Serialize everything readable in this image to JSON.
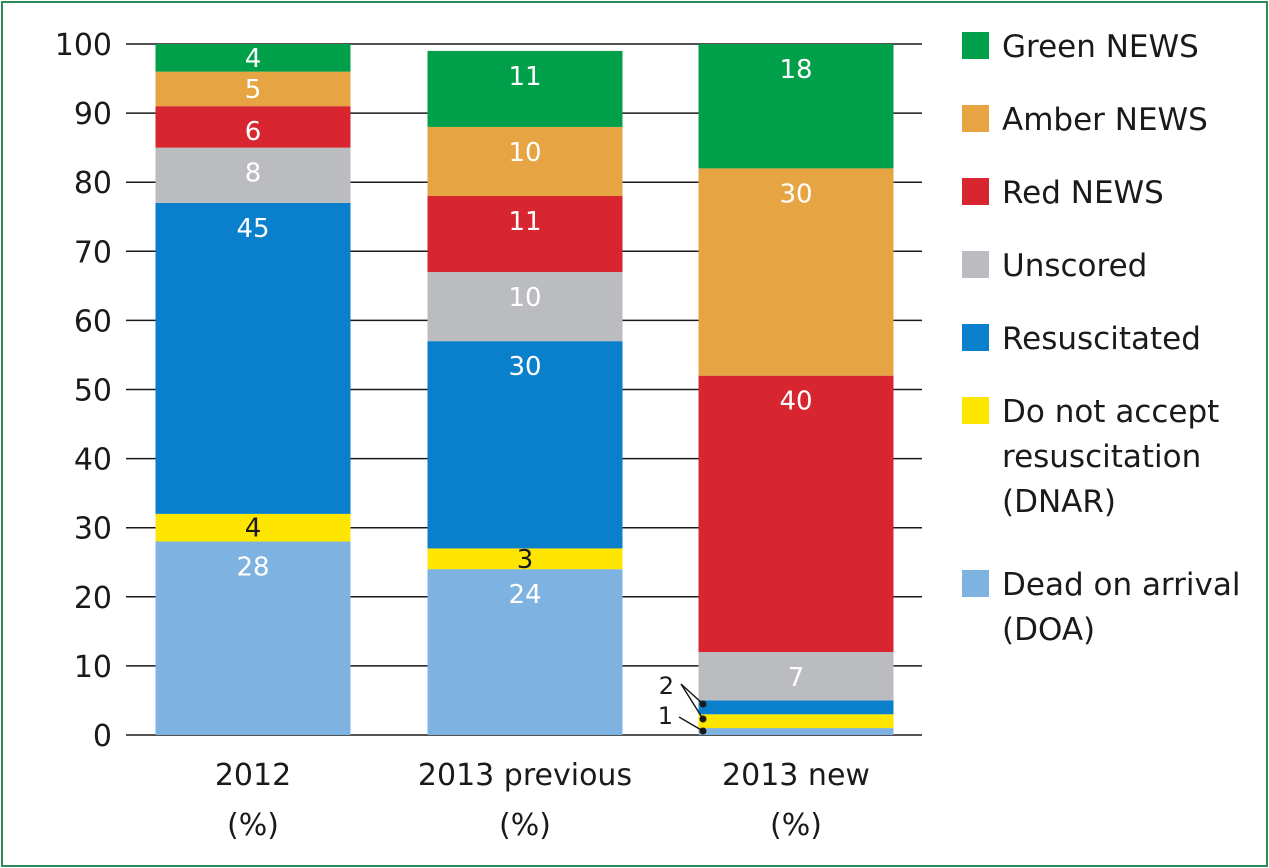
{
  "chart_data": {
    "type": "bar",
    "stacked": true,
    "categories": [
      [
        "2012",
        "(%)"
      ],
      [
        "2013 previous",
        "(%)"
      ],
      [
        "2013 new",
        "(%)"
      ]
    ],
    "ylim": [
      0,
      100
    ],
    "yticks": [
      0,
      10,
      20,
      30,
      40,
      50,
      60,
      70,
      80,
      90,
      100
    ],
    "grid": true,
    "legend_position": "right",
    "series": [
      {
        "name": "Dead on arrival (DOA)",
        "legend_lines": [
          "Dead on arrival",
          "(DOA)"
        ],
        "color": "#7eb2e0",
        "label_color": "#ffffff",
        "values": [
          28,
          24,
          1
        ]
      },
      {
        "name": "Do not accept resuscitation (DNAR)",
        "legend_lines": [
          "Do not accept",
          "resuscitation",
          "(DNAR)"
        ],
        "color": "#ffe600",
        "label_color": "#1a1a1a",
        "values": [
          4,
          3,
          2
        ]
      },
      {
        "name": "Resuscitated",
        "legend_lines": [
          "Resuscitated"
        ],
        "color": "#0a7fcc",
        "label_color": "#ffffff",
        "values": [
          45,
          30,
          2
        ]
      },
      {
        "name": "Unscored",
        "legend_lines": [
          "Unscored"
        ],
        "color": "#bbbcbf",
        "label_color": "#ffffff",
        "values": [
          8,
          10,
          7
        ]
      },
      {
        "name": "Red NEWS",
        "legend_lines": [
          "Red NEWS"
        ],
        "color": "#d7262f",
        "label_color": "#ffffff",
        "values": [
          6,
          11,
          40
        ]
      },
      {
        "name": "Amber NEWS",
        "legend_lines": [
          "Amber NEWS"
        ],
        "color": "#e6a443",
        "label_color": "#ffffff",
        "values": [
          5,
          10,
          30
        ]
      },
      {
        "name": "Green NEWS",
        "legend_lines": [
          "Green NEWS"
        ],
        "color": "#00a04a",
        "label_color": "#ffffff",
        "values": [
          4,
          11,
          18
        ]
      }
    ],
    "legend_order": [
      "Green NEWS",
      "Amber NEWS",
      "Red NEWS",
      "Unscored",
      "Resuscitated",
      "Do not accept resuscitation (DNAR)",
      "Dead on arrival (DOA)"
    ],
    "callouts": [
      {
        "text": "2",
        "category": 2
      },
      {
        "text": "1",
        "category": 2
      }
    ]
  }
}
